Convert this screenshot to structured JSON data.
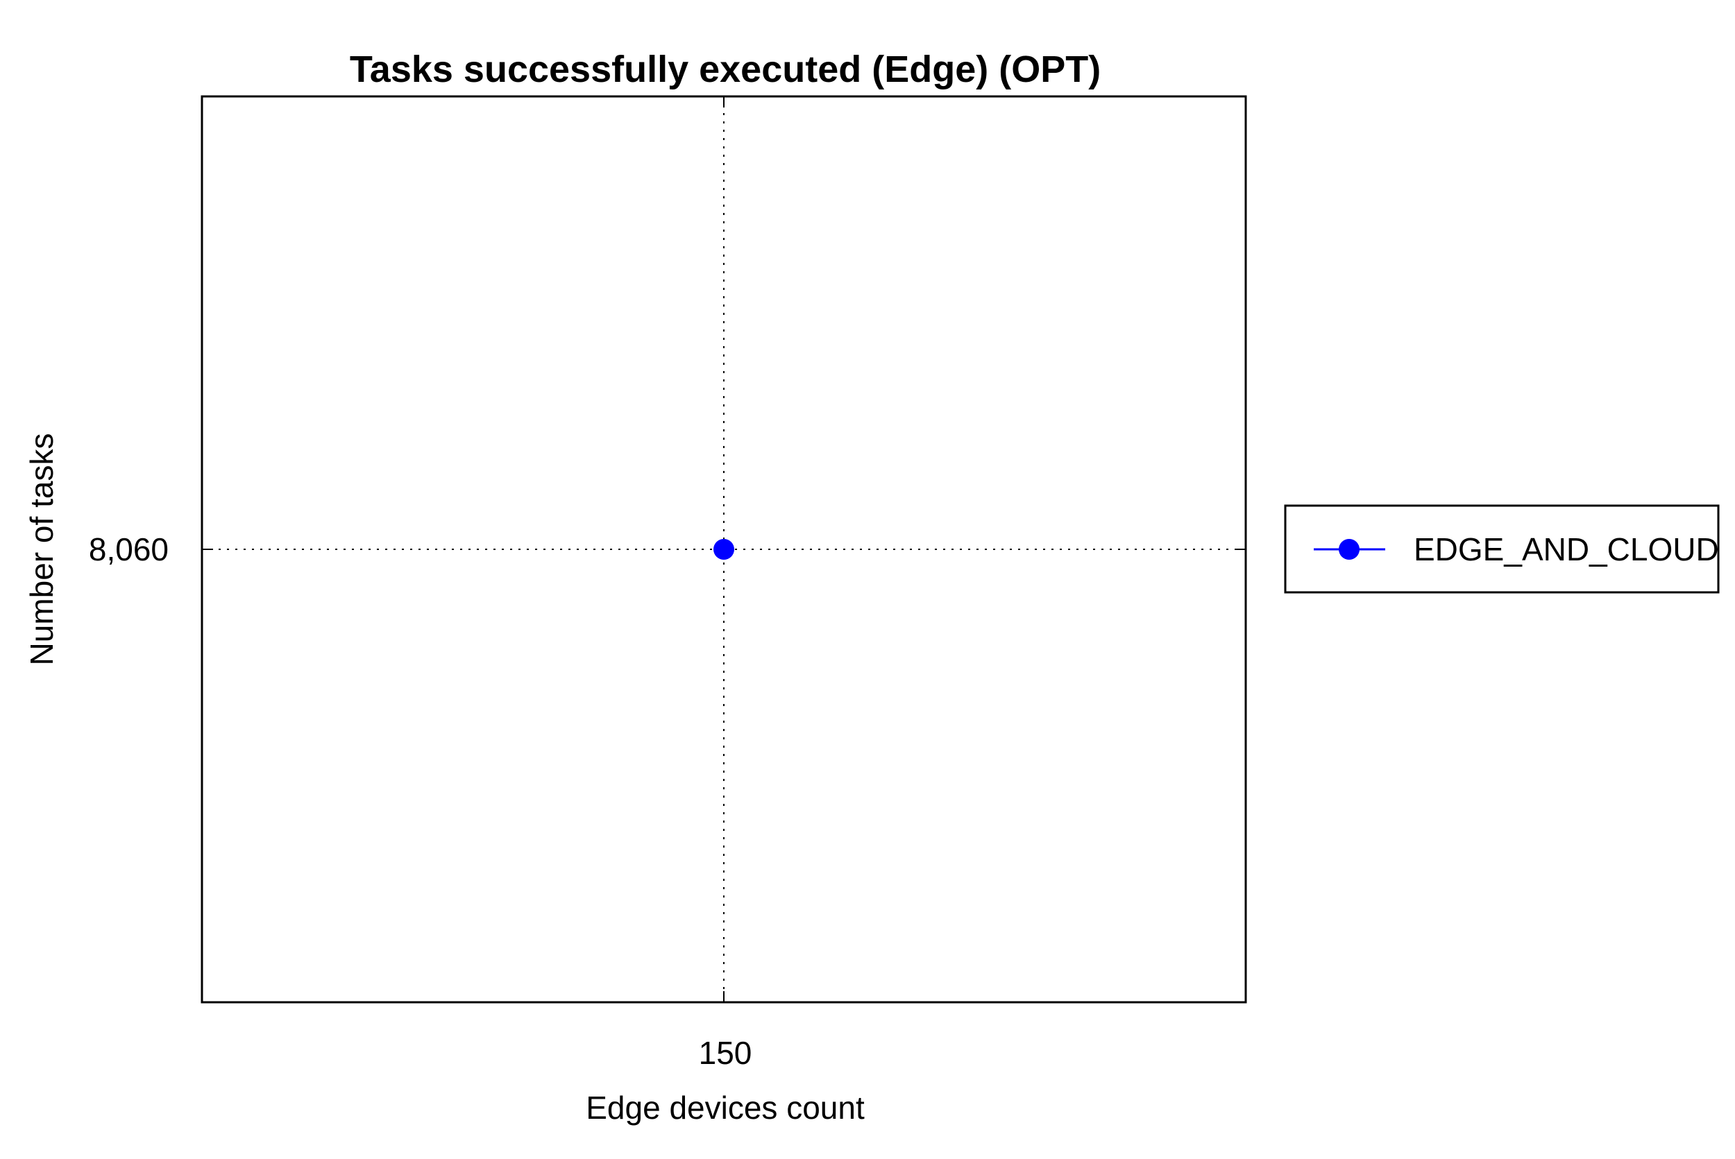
{
  "chart_data": {
    "type": "line",
    "title": "Tasks successfully executed (Edge) (OPT)",
    "xlabel": "Edge devices count",
    "ylabel": "Number of tasks",
    "x_ticks": [
      "150"
    ],
    "y_ticks": [
      "8,060"
    ],
    "xlim": [
      149,
      151
    ],
    "ylim": [
      8059,
      8061
    ],
    "grid": true,
    "grid_style": "dotted",
    "legend_position": "right, outside plot",
    "series": [
      {
        "name": "EDGE_AND_CLOUD",
        "color": "#0000ff",
        "marker": "circle",
        "points": [
          {
            "x": 150,
            "y": 8060
          }
        ]
      }
    ]
  }
}
